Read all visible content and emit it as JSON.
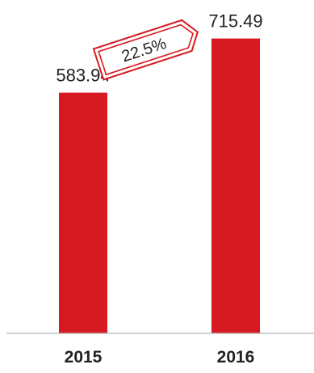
{
  "chart_data": {
    "type": "bar",
    "categories": [
      "2015",
      "2016"
    ],
    "values": [
      583.94,
      715.49
    ],
    "value_labels": [
      "583.94",
      "715.49"
    ],
    "ylim": [
      0,
      750
    ],
    "grid": false,
    "bar_color": "#d71a21",
    "annotation": {
      "text": "22.5%",
      "color": "#d71a21"
    }
  }
}
